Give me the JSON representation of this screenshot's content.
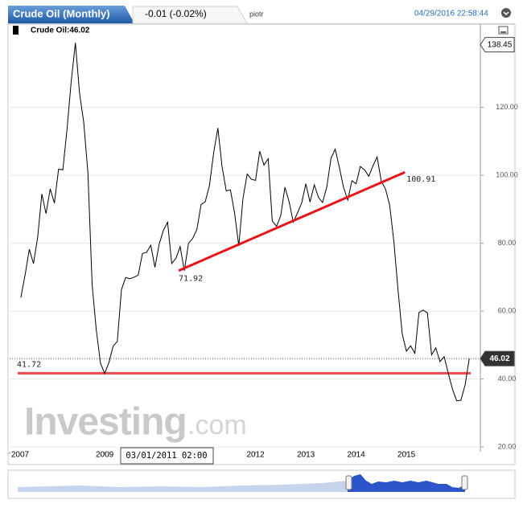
{
  "header": {
    "title": "Crude Oil (Monthly)",
    "change": "-0.01 (-0.02%)",
    "user": "piotr",
    "datetime": "04/29/2016 22:58:44",
    "legend": "Crude Oil:46.02",
    "crosshair": "03/01/2011 02:00",
    "watermark_main": "Investing",
    "watermark_suffix": ".com"
  },
  "chart_data": {
    "type": "line",
    "color": "#000000",
    "x": [
      2007.333,
      2007.417,
      2007.5,
      2007.583,
      2007.667,
      2007.75,
      2007.833,
      2007.917,
      2008.0,
      2008.083,
      2008.167,
      2008.25,
      2008.333,
      2008.417,
      2008.5,
      2008.583,
      2008.667,
      2008.75,
      2008.833,
      2008.917,
      2009.0,
      2009.083,
      2009.167,
      2009.25,
      2009.333,
      2009.417,
      2009.5,
      2009.583,
      2009.667,
      2009.75,
      2009.833,
      2009.917,
      2010.0,
      2010.083,
      2010.167,
      2010.25,
      2010.333,
      2010.417,
      2010.5,
      2010.583,
      2010.667,
      2010.75,
      2010.833,
      2010.917,
      2011.0,
      2011.083,
      2011.167,
      2011.25,
      2011.333,
      2011.417,
      2011.5,
      2011.583,
      2011.667,
      2011.75,
      2011.833,
      2011.917,
      2012.0,
      2012.083,
      2012.167,
      2012.25,
      2012.333,
      2012.417,
      2012.5,
      2012.583,
      2012.667,
      2012.75,
      2012.833,
      2012.917,
      2013.0,
      2013.083,
      2013.167,
      2013.25,
      2013.333,
      2013.417,
      2013.5,
      2013.583,
      2013.667,
      2013.75,
      2013.833,
      2013.917,
      2014.0,
      2014.083,
      2014.167,
      2014.25,
      2014.333,
      2014.417,
      2014.5,
      2014.583,
      2014.667,
      2014.75,
      2014.833,
      2014.917,
      2015.0,
      2015.083,
      2015.167,
      2015.25,
      2015.333,
      2015.417,
      2015.5,
      2015.583,
      2015.667,
      2015.75,
      2015.833,
      2015.917,
      2016.0,
      2016.083,
      2016.167,
      2016.25
    ],
    "values": [
      64.0,
      70.7,
      78.2,
      74.0,
      81.7,
      94.5,
      88.7,
      96.0,
      91.8,
      101.8,
      101.6,
      113.5,
      127.4,
      139.0,
      124.1,
      115.5,
      100.6,
      67.8,
      54.4,
      44.6,
      41.7,
      44.8,
      49.7,
      51.1,
      66.3,
      69.9,
      69.5,
      70.0,
      70.6,
      77.0,
      77.3,
      79.4,
      72.9,
      79.7,
      83.8,
      86.2,
      74.0,
      75.6,
      79.0,
      71.9,
      80.0,
      81.4,
      84.1,
      91.4,
      92.2,
      97.0,
      106.7,
      113.9,
      102.7,
      95.4,
      95.7,
      88.8,
      79.2,
      93.2,
      100.4,
      98.8,
      98.5,
      107.1,
      103.0,
      104.9,
      86.5,
      85.0,
      88.1,
      96.5,
      92.2,
      86.2,
      88.9,
      91.8,
      97.5,
      92.1,
      97.2,
      93.5,
      92.0,
      96.6,
      105.0,
      107.7,
      102.3,
      96.4,
      92.7,
      98.4,
      97.5,
      102.6,
      101.6,
      99.7,
      102.7,
      105.4,
      98.2,
      96.0,
      91.2,
      80.5,
      66.2,
      53.3,
      48.2,
      49.8,
      47.6,
      59.6,
      60.3,
      59.5,
      47.1,
      49.2,
      45.1,
      46.6,
      41.65,
      37.0,
      33.6,
      33.75,
      38.3,
      46.02
    ],
    "xlim": [
      2007.11,
      2016.47
    ],
    "ylim": [
      18.6,
      141.2
    ],
    "xticks": [
      2007,
      2009,
      2012,
      2013,
      2014,
      2015
    ],
    "yticks": [
      {
        "value": 20,
        "label": "20.00"
      },
      {
        "value": 40,
        "label": "40.00"
      },
      {
        "value": 60,
        "label": "60.00"
      },
      {
        "value": 80,
        "label": "80.00"
      },
      {
        "value": 100,
        "label": "100.00"
      },
      {
        "value": 120,
        "label": "120.00"
      }
    ],
    "max_flag": 138.45,
    "grid": true,
    "trendline": {
      "x": [
        2010.47,
        2014.97
      ],
      "values": [
        71.92,
        100.91
      ],
      "color": "#e8141b"
    },
    "hline": {
      "value": 41.72,
      "color": "#f0474b"
    }
  }
}
